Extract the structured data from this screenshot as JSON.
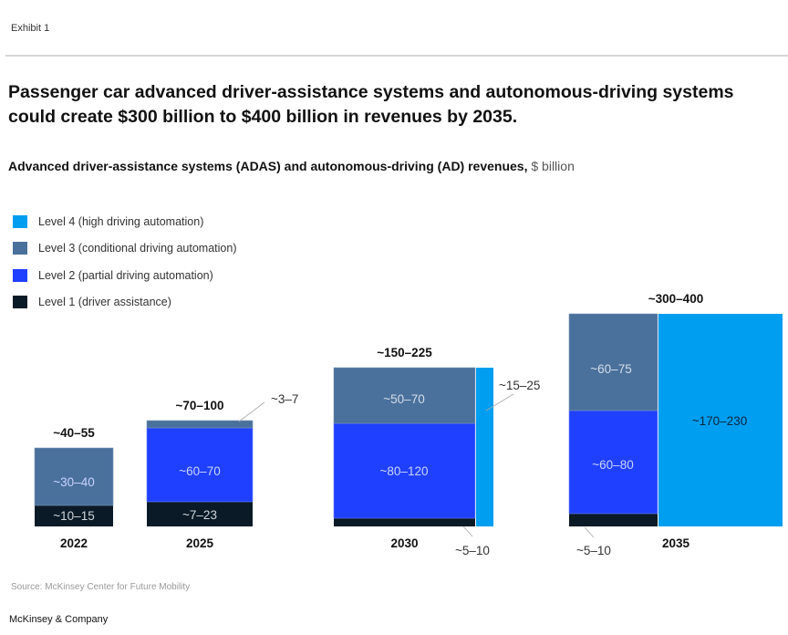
{
  "header": {
    "exhibit_label": "Exhibit 1",
    "title": "Passenger car advanced driver-assistance systems and autonomous-driving systems could create $300 billion to $400 billion in revenues by 2035.",
    "subtitle": "Advanced driver-assistance systems (ADAS) and autonomous-driving (AD) revenues,",
    "unit": "$ billion"
  },
  "footer": {
    "source": "Source: McKinsey Center for Future Mobility",
    "brand": "McKinsey & Company"
  },
  "colors": {
    "level1": "#0a1a26",
    "level2": "#1f40ff",
    "level3": "#4a719c",
    "level4": "#009ef0"
  },
  "chart_data": {
    "type": "bar",
    "stacked": true,
    "variable_width": true,
    "title": "Advanced driver-assistance systems (ADAS) and autonomous-driving (AD) revenues",
    "unit": "$ billion",
    "categories": [
      "2022",
      "2025",
      "2030",
      "2035"
    ],
    "totals": [
      "~40–55",
      "~70–100",
      "~150–225",
      "~300–400"
    ],
    "total_midpoints": [
      47.5,
      85,
      187.5,
      350
    ],
    "legend_position": "top-left",
    "series": [
      {
        "key": "level4",
        "name": "Level 4 (high driving automation)",
        "labels": [
          null,
          null,
          "~15–25",
          "~170–230"
        ],
        "midpoints": [
          0,
          0,
          20,
          200
        ]
      },
      {
        "key": "level3",
        "name": "Level 3 (conditional driving automation)",
        "labels": [
          null,
          "~3–7",
          "~50–70",
          "~60–75"
        ],
        "midpoints": [
          0,
          5,
          60,
          67.5
        ]
      },
      {
        "key": "level2",
        "name": "Level 2 (partial driving automation)",
        "labels": [
          "~30–40",
          "~60–70",
          "~80–120",
          "~60–80"
        ],
        "midpoints": [
          35,
          65,
          100,
          70
        ]
      },
      {
        "key": "level1",
        "name": "Level 1 (driver assistance)",
        "labels": [
          "~10–15",
          "~7–23",
          "~5–10",
          "~5–10"
        ],
        "midpoints": [
          12.5,
          15,
          7.5,
          7.5
        ]
      }
    ]
  }
}
